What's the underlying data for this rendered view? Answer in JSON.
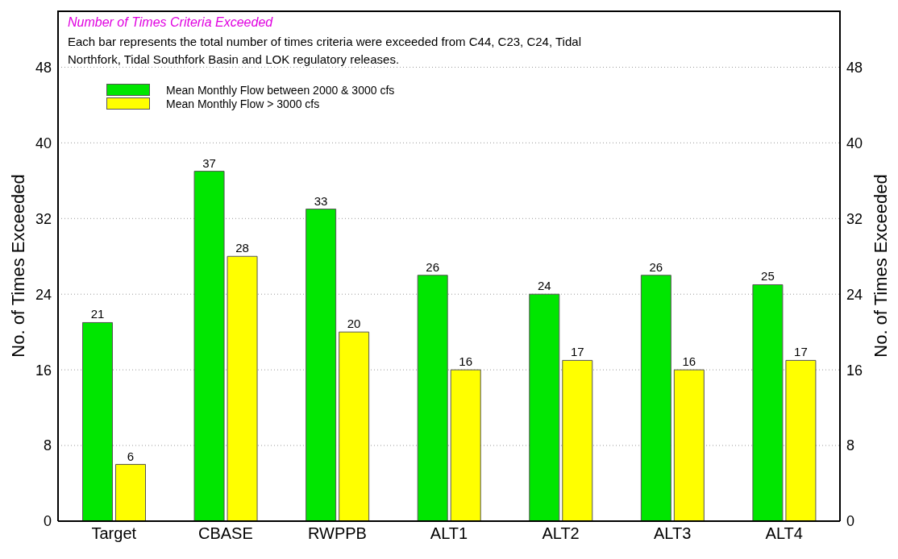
{
  "chart_data": {
    "type": "bar",
    "title": "Number of Times Criteria Exceeded",
    "subtitle": "Each bar represents the total number of times criteria were exceeded from C44, C23, C24, Tidal Northfork, Tidal Southfork Basin and LOK regulatory releases.",
    "ylabel": "No. of Times Exceeded",
    "y2label": "No. of Times Exceeded",
    "categories": [
      "Target",
      "CBASE",
      "RWPPB",
      "ALT1",
      "ALT2",
      "ALT3",
      "ALT4"
    ],
    "series": [
      {
        "name": "Mean Monthly Flow between 2000 & 3000 cfs",
        "color": "#00e600",
        "values": [
          21,
          37,
          33,
          26,
          24,
          26,
          25
        ]
      },
      {
        "name": "Mean Monthly Flow > 3000 cfs",
        "color": "#ffff00",
        "values": [
          6,
          28,
          20,
          16,
          17,
          16,
          17
        ]
      }
    ],
    "ylim": [
      0,
      54
    ],
    "yticks": [
      0,
      8,
      16,
      24,
      32,
      40,
      48
    ],
    "y2lim": [
      0,
      54
    ],
    "y2ticks": [
      0,
      8,
      16,
      24,
      32,
      40,
      48
    ],
    "grid": "y",
    "legend": "top left",
    "data_labels": true
  }
}
